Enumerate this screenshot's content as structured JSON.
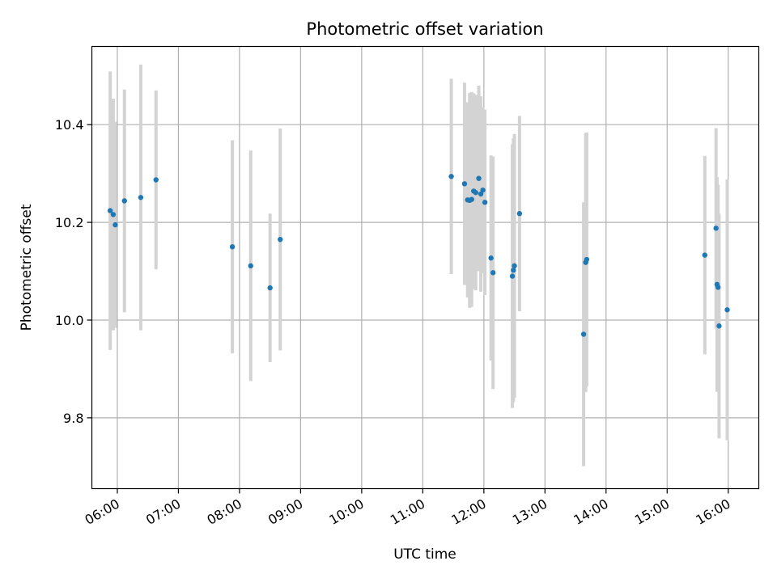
{
  "chart_data": {
    "type": "scatter",
    "title": "Photometric offset variation",
    "xlabel": "UTC time",
    "ylabel": "Photometric offset",
    "x_unit": "time (HH:MM)",
    "xlim": [
      "05:35",
      "16:30"
    ],
    "ylim": [
      9.655,
      10.56
    ],
    "x_ticks": [
      "06:00",
      "07:00",
      "08:00",
      "09:00",
      "10:00",
      "11:00",
      "12:00",
      "13:00",
      "14:00",
      "15:00",
      "16:00"
    ],
    "y_ticks": [
      9.8,
      10.0,
      10.2,
      10.4
    ],
    "y_tick_labels": [
      "9.8",
      "10.0",
      "10.2",
      "10.4"
    ],
    "grid": true,
    "legend": "none",
    "colors": {
      "points": "#1f77b4",
      "error_bars": "#d3d3d3",
      "grid": "#b0b0b0"
    },
    "series": [
      {
        "points": [
          {
            "x": "05:53",
            "y": 10.224,
            "err": 0.285
          },
          {
            "x": "05:56",
            "y": 10.216,
            "err": 0.237
          },
          {
            "x": "05:58",
            "y": 10.195,
            "err": 0.211
          },
          {
            "x": "06:07",
            "y": 10.244,
            "err": 0.228
          },
          {
            "x": "06:23",
            "y": 10.251,
            "err": 0.272
          },
          {
            "x": "06:38",
            "y": 10.287,
            "err": 0.183
          },
          {
            "x": "07:53",
            "y": 10.15,
            "err": 0.218
          },
          {
            "x": "08:11",
            "y": 10.111,
            "err": 0.236
          },
          {
            "x": "08:30",
            "y": 10.066,
            "err": 0.152
          },
          {
            "x": "08:40",
            "y": 10.165,
            "err": 0.227
          },
          {
            "x": "11:28",
            "y": 10.294,
            "err": 0.2
          },
          {
            "x": "11:41",
            "y": 10.279,
            "err": 0.207
          },
          {
            "x": "11:44",
            "y": 10.246,
            "err": 0.2
          },
          {
            "x": "11:46",
            "y": 10.245,
            "err": 0.22
          },
          {
            "x": "11:48",
            "y": 10.247,
            "err": 0.22
          },
          {
            "x": "11:50",
            "y": 10.264,
            "err": 0.2
          },
          {
            "x": "11:52",
            "y": 10.261,
            "err": 0.2
          },
          {
            "x": "11:55",
            "y": 10.29,
            "err": 0.19
          },
          {
            "x": "11:57",
            "y": 10.258,
            "err": 0.2
          },
          {
            "x": "11:59",
            "y": 10.266,
            "err": 0.17
          },
          {
            "x": "12:01",
            "y": 10.241,
            "err": 0.19
          },
          {
            "x": "12:07",
            "y": 10.127,
            "err": 0.21
          },
          {
            "x": "12:09",
            "y": 10.097,
            "err": 0.238
          },
          {
            "x": "12:28",
            "y": 10.09,
            "err": 0.27
          },
          {
            "x": "12:29",
            "y": 10.102,
            "err": 0.27
          },
          {
            "x": "12:30",
            "y": 10.111,
            "err": 0.27
          },
          {
            "x": "12:35",
            "y": 10.218,
            "err": 0.2
          },
          {
            "x": "13:38",
            "y": 9.971,
            "err": 0.27
          },
          {
            "x": "13:40",
            "y": 10.118,
            "err": 0.265
          },
          {
            "x": "13:41",
            "y": 10.124,
            "err": 0.26
          },
          {
            "x": "15:37",
            "y": 10.133,
            "err": 0.203
          },
          {
            "x": "15:48",
            "y": 10.188,
            "err": 0.205
          },
          {
            "x": "15:49",
            "y": 10.073,
            "err": 0.22
          },
          {
            "x": "15:50",
            "y": 10.067,
            "err": 0.21
          },
          {
            "x": "15:51",
            "y": 9.988,
            "err": 0.23
          },
          {
            "x": "15:59",
            "y": 10.021,
            "err": 0.267
          }
        ]
      }
    ]
  }
}
